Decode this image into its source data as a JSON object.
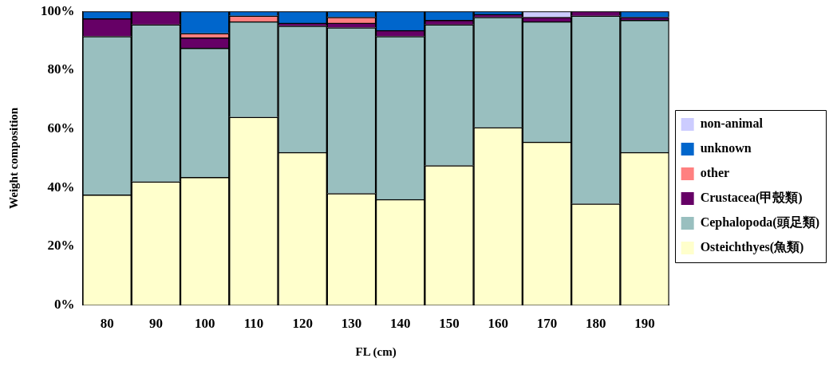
{
  "chart_data": {
    "type": "bar",
    "stacked": true,
    "xlabel": "FL (cm)",
    "ylabel": "Weight composition",
    "categories": [
      "80",
      "90",
      "100",
      "110",
      "120",
      "130",
      "140",
      "150",
      "160",
      "170",
      "180",
      "190"
    ],
    "series": [
      {
        "name": "Osteichthyes(魚類)",
        "color": "#ffffcc",
        "values": [
          37.5,
          42,
          43.5,
          64,
          52,
          38,
          36,
          47.5,
          60.5,
          55.5,
          34.5,
          52
        ]
      },
      {
        "name": "Cephalopoda(頭足類)",
        "color": "#99bfbf",
        "values": [
          54,
          53.5,
          44,
          32.5,
          43,
          56.5,
          55.5,
          48,
          37.5,
          41,
          64,
          45
        ]
      },
      {
        "name": "Crustacea(甲殼類)",
        "color": "#660066",
        "values": [
          6,
          4.5,
          3.5,
          0,
          1,
          1.5,
          2,
          1.5,
          1,
          1.5,
          1.5,
          1
        ]
      },
      {
        "name": "other",
        "color": "#ff8080",
        "values": [
          0,
          0,
          1.5,
          2,
          0,
          2,
          0,
          0,
          0,
          0,
          0,
          0
        ]
      },
      {
        "name": "unknown",
        "color": "#0066cc",
        "values": [
          2.5,
          0,
          7.5,
          1.5,
          4,
          2,
          6.5,
          3,
          1,
          0,
          0,
          2
        ]
      },
      {
        "name": "non-animal",
        "color": "#ccccff",
        "values": [
          0,
          0,
          0,
          0,
          0,
          0,
          0,
          0,
          0,
          2,
          0,
          0
        ]
      }
    ],
    "ylim": [
      0,
      100
    ],
    "yticks": [
      {
        "value": 0,
        "label": "0%"
      },
      {
        "value": 20,
        "label": "20%"
      },
      {
        "value": 40,
        "label": "40%"
      },
      {
        "value": 60,
        "label": "60%"
      },
      {
        "value": 80,
        "label": "80%"
      },
      {
        "value": 100,
        "label": "100%"
      }
    ],
    "grid": false,
    "legend": "right"
  }
}
